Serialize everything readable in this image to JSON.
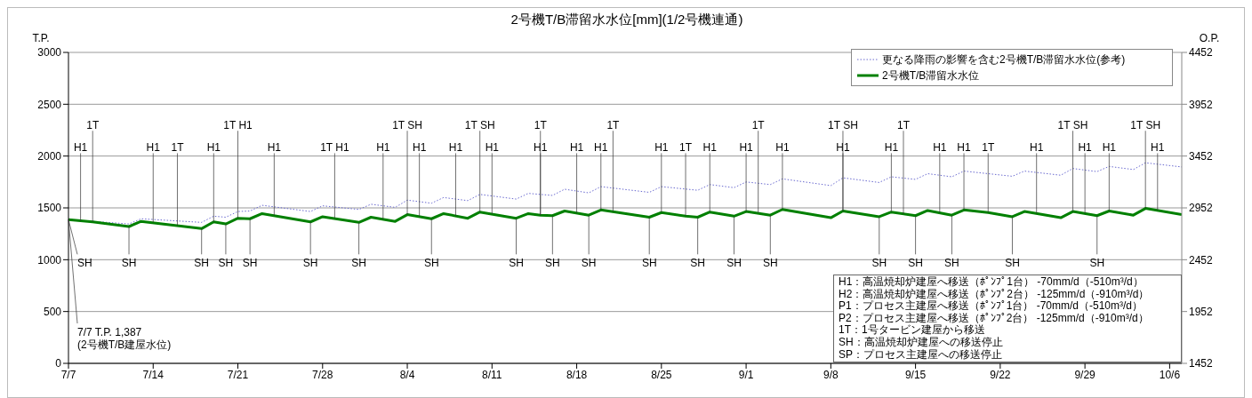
{
  "chart_data": {
    "type": "line",
    "title": "2号機T/B滞留水水位[mm](1/2号機連通)",
    "ylabel": "T.P.",
    "y2label": "O.P.",
    "xlim": [
      "--07-07",
      "--10-07"
    ],
    "xticks": [
      {
        "value": "--07-07",
        "label": "7/7"
      },
      {
        "value": "--07-14",
        "label": "7/14"
      },
      {
        "value": "--07-21",
        "label": "7/21"
      },
      {
        "value": "--07-28",
        "label": "7/28"
      },
      {
        "value": "--08-04",
        "label": "8/4"
      },
      {
        "value": "--08-11",
        "label": "8/11"
      },
      {
        "value": "--08-18",
        "label": "8/18"
      },
      {
        "value": "--08-25",
        "label": "8/25"
      },
      {
        "value": "--09-01",
        "label": "9/1"
      },
      {
        "value": "--09-08",
        "label": "9/8"
      },
      {
        "value": "--09-15",
        "label": "9/15"
      },
      {
        "value": "--09-22",
        "label": "9/22"
      },
      {
        "value": "--09-29",
        "label": "9/29"
      },
      {
        "value": "--10-06",
        "label": "10/6"
      }
    ],
    "ylim": [
      0,
      3000
    ],
    "yticks": [
      0,
      500,
      1000,
      1500,
      2000,
      2500,
      3000
    ],
    "y2lim": [
      1452,
      4452
    ],
    "y2ticks": [
      1452,
      1952,
      2452,
      2952,
      3452,
      3952,
      4452
    ],
    "grid": "y",
    "legend": "top right",
    "marker": "none",
    "series": [
      {
        "name": "更なる降雨の影響を含む2号機T/B滞留水水位(参考)",
        "color": "#6a6ad0",
        "line_style": "dotted",
        "x": [
          "--07-07",
          "--07-12",
          "--07-13",
          "--07-18",
          "--07-19",
          "--07-20",
          "--07-21",
          "--07-22",
          "--07-23",
          "--07-27",
          "--07-28",
          "--07-31",
          "--08-01",
          "--08-03",
          "--08-04",
          "--08-06",
          "--08-07",
          "--08-09",
          "--08-10",
          "--08-13",
          "--08-14",
          "--08-16",
          "--08-17",
          "--08-19",
          "--08-20",
          "--08-24",
          "--08-25",
          "--08-28",
          "--08-29",
          "--08-31",
          "--09-01",
          "--09-03",
          "--09-04",
          "--09-08",
          "--09-09",
          "--09-12",
          "--09-13",
          "--09-15",
          "--09-16",
          "--09-18",
          "--09-19",
          "--09-23",
          "--09-24",
          "--09-27",
          "--09-28",
          "--09-30",
          "--10-01",
          "--10-03",
          "--10-04",
          "--10-07"
        ],
        "values": [
          1387,
          1345,
          1395,
          1360,
          1420,
          1410,
          1465,
          1470,
          1525,
          1465,
          1520,
          1485,
          1535,
          1505,
          1575,
          1545,
          1600,
          1570,
          1630,
          1585,
          1640,
          1620,
          1680,
          1645,
          1705,
          1650,
          1705,
          1670,
          1725,
          1695,
          1750,
          1725,
          1780,
          1715,
          1790,
          1745,
          1800,
          1775,
          1830,
          1800,
          1855,
          1805,
          1855,
          1815,
          1880,
          1850,
          1900,
          1870,
          1935,
          1895
        ]
      },
      {
        "name": "2号機T/B滞留水水位",
        "color": "#008000",
        "line_style": "solid",
        "x": [
          "--07-07",
          "--07-09",
          "--07-12",
          "--07-13",
          "--07-18",
          "--07-19",
          "--07-20",
          "--07-21",
          "--07-22",
          "--07-23",
          "--07-27",
          "--07-28",
          "--07-31",
          "--08-01",
          "--08-03",
          "--08-04",
          "--08-06",
          "--08-07",
          "--08-09",
          "--08-10",
          "--08-13",
          "--08-14",
          "--08-15",
          "--08-16",
          "--08-17",
          "--08-19",
          "--08-20",
          "--08-24",
          "--08-25",
          "--08-27",
          "--08-28",
          "--08-29",
          "--08-31",
          "--09-01",
          "--09-03",
          "--09-04",
          "--09-08",
          "--09-09",
          "--09-12",
          "--09-13",
          "--09-15",
          "--09-16",
          "--09-18",
          "--09-19",
          "--09-21",
          "--09-23",
          "--09-24",
          "--09-27",
          "--09-28",
          "--09-30",
          "--10-01",
          "--10-03",
          "--10-04",
          "--10-07"
        ],
        "values": [
          1387,
          1365,
          1320,
          1370,
          1300,
          1365,
          1345,
          1400,
          1395,
          1445,
          1365,
          1415,
          1360,
          1410,
          1370,
          1435,
          1395,
          1445,
          1400,
          1460,
          1400,
          1445,
          1430,
          1425,
          1470,
          1430,
          1480,
          1410,
          1455,
          1420,
          1410,
          1460,
          1420,
          1465,
          1430,
          1485,
          1405,
          1470,
          1415,
          1460,
          1425,
          1475,
          1430,
          1480,
          1455,
          1415,
          1465,
          1405,
          1465,
          1425,
          1470,
          1430,
          1495,
          1435
        ]
      }
    ],
    "annotations": [
      {
        "text": "H1",
        "x": "--07-08",
        "y": 1375
      },
      {
        "text": "H1",
        "x": "--07-14",
        "y": 1360
      },
      {
        "text": "H1",
        "x": "--07-19",
        "y": 1365
      },
      {
        "text": "H1",
        "x": "--07-24",
        "y": 1425
      },
      {
        "text": "H1",
        "x": "--08-02",
        "y": 1390
      },
      {
        "text": "H1",
        "x": "--08-05",
        "y": 1415
      },
      {
        "text": "H1",
        "x": "--08-08",
        "y": 1420
      },
      {
        "text": "H1",
        "x": "--08-11",
        "y": 1440
      },
      {
        "text": "H1",
        "x": "--08-15",
        "y": 1430
      },
      {
        "text": "H1",
        "x": "--08-18",
        "y": 1450
      },
      {
        "text": "H1",
        "x": "--08-20",
        "y": 1480
      },
      {
        "text": "H1",
        "x": "--08-25",
        "y": 1455
      },
      {
        "text": "H1",
        "x": "--08-29",
        "y": 1460
      },
      {
        "text": "H1",
        "x": "--09-01",
        "y": 1465
      },
      {
        "text": "H1",
        "x": "--09-04",
        "y": 1485
      },
      {
        "text": "H1",
        "x": "--09-09",
        "y": 1470
      },
      {
        "text": "H1",
        "x": "--09-13",
        "y": 1460
      },
      {
        "text": "H1",
        "x": "--09-17",
        "y": 1455
      },
      {
        "text": "H1",
        "x": "--09-19",
        "y": 1480
      },
      {
        "text": "H1",
        "x": "--09-25",
        "y": 1445
      },
      {
        "text": "H1",
        "x": "--09-29",
        "y": 1445
      },
      {
        "text": "H1",
        "x": "--10-01",
        "y": 1470
      },
      {
        "text": "H1",
        "x": "--10-05",
        "y": 1475
      },
      {
        "text": "1T",
        "x": "--07-09",
        "y": 1365
      },
      {
        "text": "1T",
        "x": "--07-16",
        "y": 1330
      },
      {
        "text": "1T H1",
        "x": "--07-21",
        "y": 1400
      },
      {
        "text": "1T H1",
        "x": "--07-29",
        "y": 1400
      },
      {
        "text": "1T SH",
        "x": "--08-04",
        "y": 1435
      },
      {
        "text": "1T SH",
        "x": "--08-10",
        "y": 1460
      },
      {
        "text": "1T",
        "x": "--08-15",
        "y": 1430
      },
      {
        "text": "1T",
        "x": "--08-21",
        "y": 1465
      },
      {
        "text": "1T",
        "x": "--08-27",
        "y": 1420
      },
      {
        "text": "1T",
        "x": "--09-02",
        "y": 1450
      },
      {
        "text": "1T SH",
        "x": "--09-09",
        "y": 1470
      },
      {
        "text": "1T",
        "x": "--09-14",
        "y": 1440
      },
      {
        "text": "1T",
        "x": "--09-21",
        "y": 1455
      },
      {
        "text": "1T SH",
        "x": "--09-28",
        "y": 1465
      },
      {
        "text": "1T SH",
        "x": "--10-04",
        "y": 1495
      },
      {
        "text": "SH",
        "x": "--07-07",
        "y": 1387
      },
      {
        "text": "SH",
        "x": "--07-12",
        "y": 1320
      },
      {
        "text": "SH",
        "x": "--07-18",
        "y": 1300
      },
      {
        "text": "SH",
        "x": "--07-20",
        "y": 1345
      },
      {
        "text": "SH",
        "x": "--07-22",
        "y": 1395
      },
      {
        "text": "SH",
        "x": "--07-27",
        "y": 1365
      },
      {
        "text": "SH",
        "x": "--07-31",
        "y": 1360
      },
      {
        "text": "SH",
        "x": "--08-06",
        "y": 1395
      },
      {
        "text": "SH",
        "x": "--08-13",
        "y": 1400
      },
      {
        "text": "SH",
        "x": "--08-16",
        "y": 1425
      },
      {
        "text": "SH",
        "x": "--08-19",
        "y": 1430
      },
      {
        "text": "SH",
        "x": "--08-24",
        "y": 1410
      },
      {
        "text": "SH",
        "x": "--08-28",
        "y": 1410
      },
      {
        "text": "SH",
        "x": "--08-31",
        "y": 1420
      },
      {
        "text": "SH",
        "x": "--09-03",
        "y": 1430
      },
      {
        "text": "SH",
        "x": "--09-12",
        "y": 1415
      },
      {
        "text": "SH",
        "x": "--09-15",
        "y": 1425
      },
      {
        "text": "SH",
        "x": "--09-18",
        "y": 1430
      },
      {
        "text": "SH",
        "x": "--09-23",
        "y": 1415
      },
      {
        "text": "SH",
        "x": "--09-30",
        "y": 1425
      },
      {
        "text": "7/7  T.P. 1,387\n(2号機T/B建屋水位)",
        "x": "--07-07",
        "y": 1387
      },
      "H1：高温焼却炉建屋へ移送（ﾎﾟﾝﾌﾟ1台） -70mm/d（-510m³/d）",
      "H2：高温焼却炉建屋へ移送（ﾎﾟﾝﾌﾟ2台） -125mm/d（-910m³/d）",
      "P1：プロセス主建屋へ移送（ﾎﾟﾝﾌﾟ1台） -70mm/d（-510m³/d）",
      "P2：プロセス主建屋へ移送（ﾎﾟﾝﾌﾟ2台） -125mm/d（-910m³/d）",
      "1T：1号タービン建屋から移送",
      "SH：高温焼却炉建屋への移送停止",
      "SP：プロセス主建屋への移送停止"
    ]
  }
}
